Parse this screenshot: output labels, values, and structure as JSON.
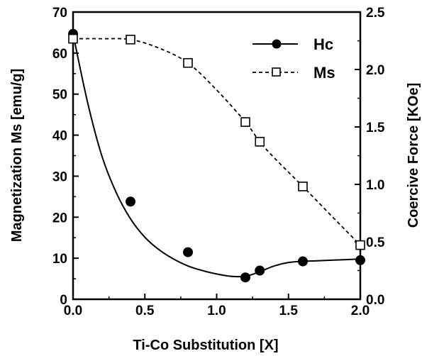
{
  "chart_data": {
    "type": "scatter",
    "title": "",
    "xlabel": "Ti-Co Substitution [X]",
    "ylabel_left": "Magnetization Ms [emu/g]",
    "ylabel_right": "Coercive Force [KOe]",
    "xlim": [
      0,
      2.0
    ],
    "ylim_left": [
      0,
      70
    ],
    "ylim_right": [
      0,
      2.5
    ],
    "xticks": [
      "0.0",
      "0.5",
      "1.0",
      "1.5",
      "2.0"
    ],
    "yticks_left": [
      "0",
      "10",
      "20",
      "30",
      "40",
      "50",
      "60",
      "70"
    ],
    "yticks_right": [
      "0.0",
      "0.5",
      "1.0",
      "1.5",
      "2.0",
      "2.5"
    ],
    "grid": false,
    "legend_position": "top-right",
    "series": [
      {
        "name": "Hc",
        "axis": "right",
        "marker": "filled-circle",
        "line": "solid",
        "x": [
          0.0,
          0.4,
          0.8,
          1.2,
          1.3,
          1.6,
          2.0
        ],
        "y": [
          2.31,
          0.85,
          0.41,
          0.19,
          0.25,
          0.33,
          0.34
        ],
        "curve": [
          [
            0,
            2.31
          ],
          [
            0.1,
            1.72
          ],
          [
            0.2,
            1.25
          ],
          [
            0.3,
            0.93
          ],
          [
            0.4,
            0.7
          ],
          [
            0.5,
            0.54
          ],
          [
            0.6,
            0.43
          ],
          [
            0.7,
            0.35
          ],
          [
            0.8,
            0.29
          ],
          [
            0.9,
            0.25
          ],
          [
            1.0,
            0.22
          ],
          [
            1.1,
            0.2
          ],
          [
            1.2,
            0.2
          ],
          [
            1.3,
            0.24
          ],
          [
            1.4,
            0.29
          ],
          [
            1.5,
            0.32
          ],
          [
            1.6,
            0.33
          ],
          [
            1.7,
            0.335
          ],
          [
            1.8,
            0.34
          ],
          [
            1.9,
            0.345
          ],
          [
            2.0,
            0.35
          ]
        ]
      },
      {
        "name": "Ms",
        "axis": "left",
        "marker": "open-square",
        "line": "dashed",
        "x": [
          0.0,
          0.4,
          0.8,
          1.2,
          1.3,
          1.6,
          2.0
        ],
        "y": [
          63.5,
          63.3,
          57.6,
          43.2,
          38.4,
          27.5,
          13.2
        ],
        "curve": [
          [
            0,
            63.5
          ],
          [
            0.2,
            63.5
          ],
          [
            0.4,
            63.3
          ],
          [
            0.6,
            61.2
          ],
          [
            0.8,
            57.6
          ],
          [
            1.0,
            51.0
          ],
          [
            1.2,
            43.2
          ],
          [
            1.3,
            38.4
          ],
          [
            1.4,
            34.5
          ],
          [
            1.6,
            27.5
          ],
          [
            1.8,
            20.3
          ],
          [
            2.0,
            13.2
          ]
        ]
      }
    ]
  },
  "legend": {
    "items": [
      {
        "label": "Hc"
      },
      {
        "label": "Ms"
      }
    ]
  }
}
